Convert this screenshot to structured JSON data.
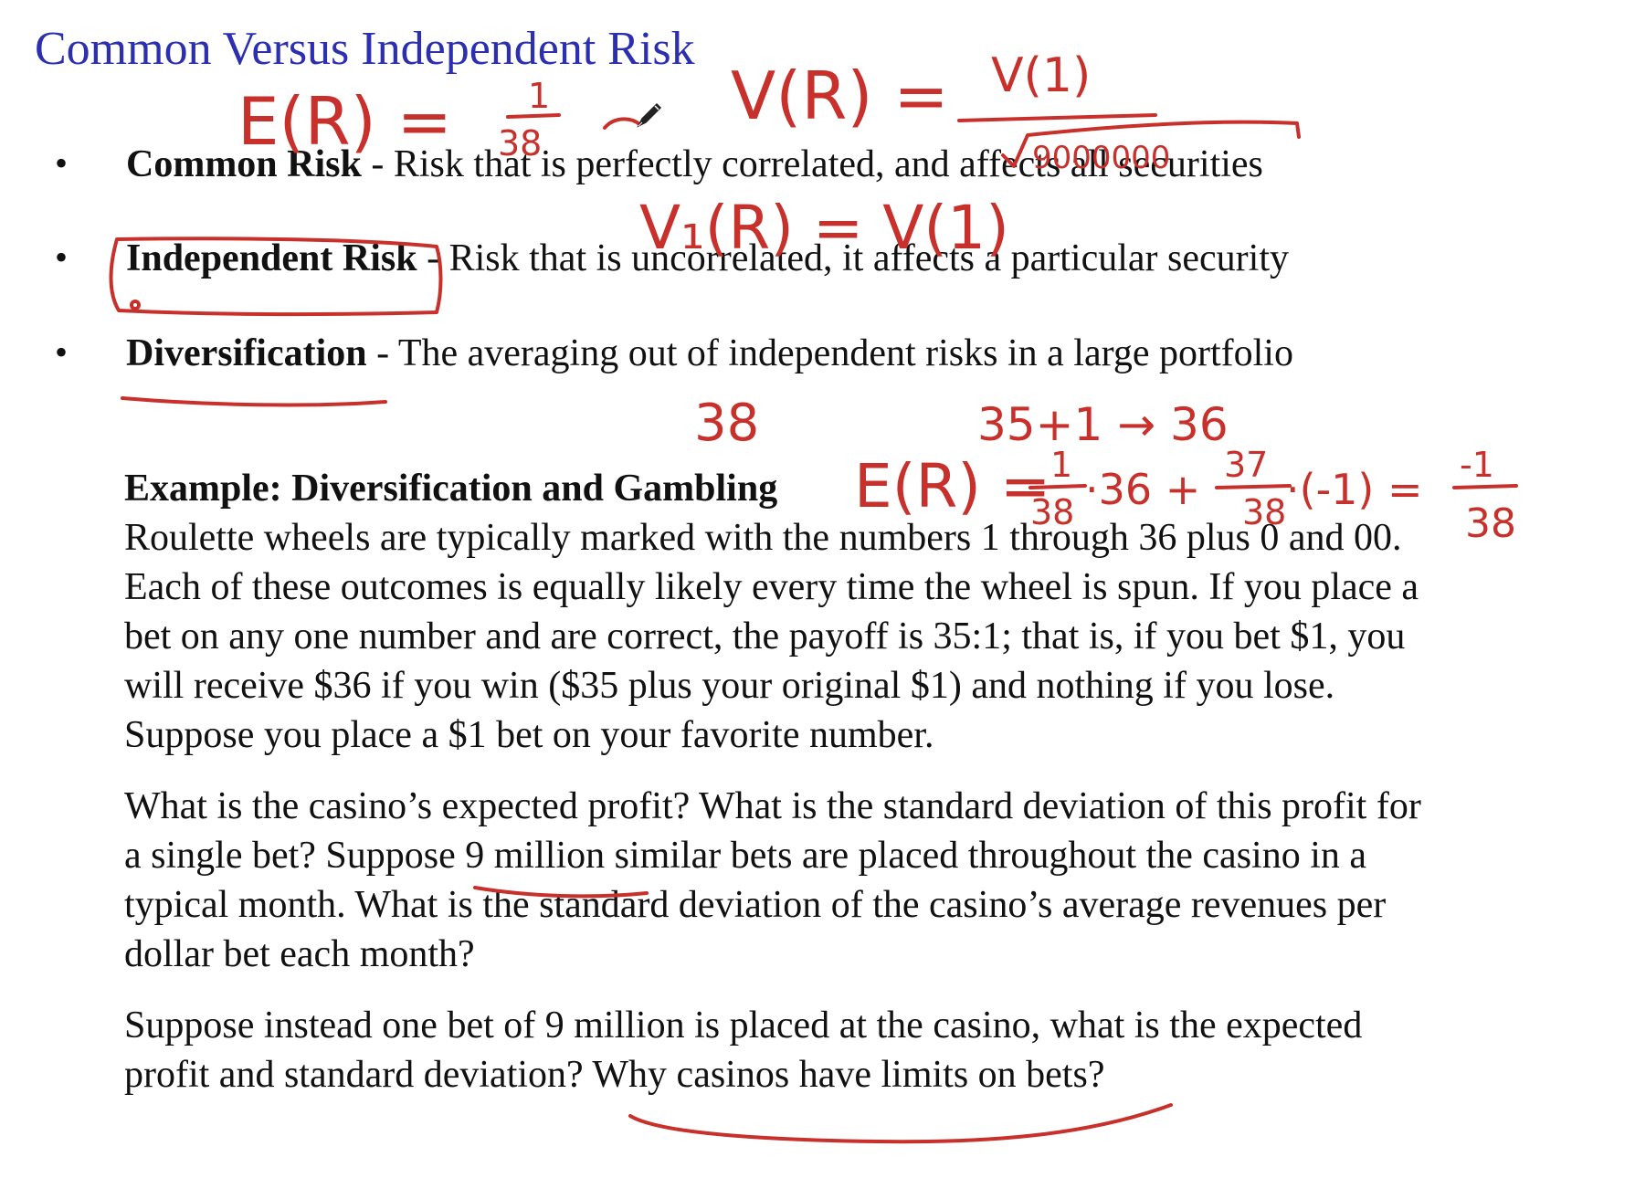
{
  "title": "Common Versus Independent Risk",
  "bullets": [
    {
      "term": "Common Risk",
      "sep": " - ",
      "text": "Risk that is perfectly correlated, and affects all securities"
    },
    {
      "term": "Independent Risk",
      "sep": " - ",
      "text": "Risk that is uncorrelated, it affects a particular security"
    },
    {
      "term": "Diversification",
      "sep": " - ",
      "text": "The averaging out of independent risks in a large portfolio"
    }
  ],
  "example": {
    "heading": "Example: Diversification and Gambling",
    "lines": [
      "Roulette wheels are typically marked with the numbers 1 through 36 plus 0 and 00.",
      "Each of these outcomes is equally likely every time the wheel is spun. If you place a",
      "bet on any one number and are correct, the payoff is 35:1; that is, if you bet $1, you",
      "will receive $36 if you win ($35 plus your original $1) and nothing if you lose.",
      "Suppose you place a $1 bet on your favorite number."
    ],
    "para2": [
      "What is the casino’s expected profit? What is the standard deviation of this profit for",
      "a single bet? Suppose 9 million similar bets are placed throughout the casino in a",
      "typical month. What is the standard deviation of the casino’s average revenues per",
      "dollar bet each month?"
    ],
    "para3": [
      "Suppose instead one bet of 9 million is placed at the casino, what is the expected",
      "profit and standard deviation? Why casinos have limits on bets?"
    ]
  },
  "annotations": {
    "eq1_lhs": "E(R) =",
    "eq1_num": "1",
    "eq1_den": "38",
    "eq2_lhs": "V(R) =",
    "eq2_num": "V(1)",
    "eq2_den": "9000000",
    "eq3": "V₁(R) = V(1)",
    "note_38": "38",
    "note_sum": "35+1 → 36",
    "eq4_lhs": "E(R) =",
    "eq4_f1_num": "1",
    "eq4_f1_den": "38",
    "eq4_mid": "·36 +",
    "eq4_f2_num": "37",
    "eq4_f2_den": "38",
    "eq4_tail": "·(-1) =",
    "eq4_res_num": "-1",
    "eq4_res_den": "38",
    "ink_color": "#c8302b",
    "pencil_icon": "pencil-icon"
  }
}
